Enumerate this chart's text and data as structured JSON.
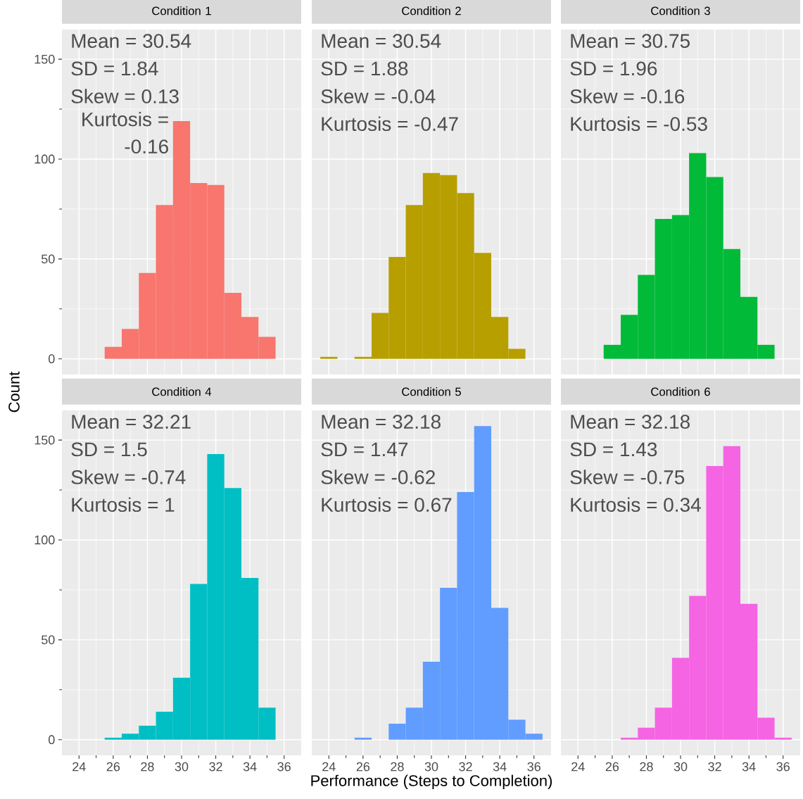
{
  "chart_data": [
    {
      "type": "histogram",
      "title": "Condition 1",
      "color": "#F8766D",
      "bins": [
        23.5,
        24.5,
        25.5,
        26.5,
        27.5,
        28.5,
        29.5,
        30.5,
        31.5,
        32.5,
        33.5,
        34.5,
        35.5,
        36.5
      ],
      "values": [
        0,
        0,
        6,
        15,
        43,
        77,
        119,
        88,
        87,
        33,
        21,
        11,
        0
      ],
      "xlim": [
        23,
        37
      ],
      "ylim": [
        -7.85,
        164.85
      ],
      "xticks": [
        24,
        26,
        28,
        30,
        32,
        34,
        36
      ],
      "yticks": [
        0,
        50,
        100,
        150
      ],
      "grid": true,
      "tick_labels": "y",
      "annotations": [
        "Mean = 30.54",
        "SD = 1.84",
        "Skew = 0.13",
        "Kurtosis = -0.16"
      ]
    },
    {
      "type": "histogram",
      "title": "Condition 2",
      "color": "#B79F00",
      "bins": [
        23.5,
        24.5,
        25.5,
        26.5,
        27.5,
        28.5,
        29.5,
        30.5,
        31.5,
        32.5,
        33.5,
        34.5,
        35.5,
        36.5
      ],
      "values": [
        1,
        0,
        1,
        23,
        51,
        77,
        93,
        92,
        83,
        53,
        21,
        5,
        0
      ],
      "xlim": [
        23,
        37
      ],
      "ylim": [
        -7.85,
        164.85
      ],
      "xticks": [
        24,
        26,
        28,
        30,
        32,
        34,
        36
      ],
      "yticks": [
        0,
        50,
        100,
        150
      ],
      "grid": true,
      "tick_labels": false,
      "annotations": [
        "Mean = 30.54",
        "SD = 1.88",
        "Skew = -0.04",
        "Kurtosis = -0.47"
      ]
    },
    {
      "type": "histogram",
      "title": "Condition 3",
      "color": "#00BA38",
      "bins": [
        23.5,
        24.5,
        25.5,
        26.5,
        27.5,
        28.5,
        29.5,
        30.5,
        31.5,
        32.5,
        33.5,
        34.5,
        35.5,
        36.5
      ],
      "values": [
        0,
        0,
        7,
        22,
        42,
        70,
        72,
        103,
        91,
        55,
        31,
        7,
        0
      ],
      "xlim": [
        23,
        37
      ],
      "ylim": [
        -7.85,
        164.85
      ],
      "xticks": [
        24,
        26,
        28,
        30,
        32,
        34,
        36
      ],
      "yticks": [
        0,
        50,
        100,
        150
      ],
      "grid": true,
      "tick_labels": false,
      "annotations": [
        "Mean = 30.75",
        "SD = 1.96",
        "Skew = -0.16",
        "Kurtosis = -0.53"
      ]
    },
    {
      "type": "histogram",
      "title": "Condition 4",
      "color": "#00BFC4",
      "ylabel": "Count",
      "bins": [
        23.5,
        24.5,
        25.5,
        26.5,
        27.5,
        28.5,
        29.5,
        30.5,
        31.5,
        32.5,
        33.5,
        34.5,
        35.5,
        36.5
      ],
      "values": [
        0,
        0,
        1,
        3,
        7,
        14,
        31,
        78,
        143,
        126,
        81,
        16,
        0
      ],
      "xlim": [
        23,
        37
      ],
      "ylim": [
        -7.85,
        164.85
      ],
      "xticks": [
        24,
        26,
        28,
        30,
        32,
        34,
        36
      ],
      "yticks": [
        0,
        50,
        100,
        150
      ],
      "grid": true,
      "annotations": [
        "Mean = 32.21",
        "SD = 1.5",
        "Skew = -0.74",
        "Kurtosis = 1"
      ]
    },
    {
      "type": "histogram",
      "title": "Condition 5",
      "color": "#619CFF",
      "xlabel": "Performance (Steps to Completion)",
      "bins": [
        23.5,
        24.5,
        25.5,
        26.5,
        27.5,
        28.5,
        29.5,
        30.5,
        31.5,
        32.5,
        33.5,
        34.5,
        35.5,
        36.5
      ],
      "values": [
        0,
        0,
        1,
        0,
        8,
        16,
        39,
        76,
        124,
        157,
        66,
        10,
        3
      ],
      "xlim": [
        23,
        37
      ],
      "ylim": [
        -7.85,
        164.85
      ],
      "xticks": [
        24,
        26,
        28,
        30,
        32,
        34,
        36
      ],
      "yticks": [
        0,
        50,
        100,
        150
      ],
      "grid": true,
      "tick_labels": "x",
      "annotations": [
        "Mean = 32.18",
        "SD = 1.47",
        "Skew = -0.62",
        "Kurtosis = 0.67"
      ]
    },
    {
      "type": "histogram",
      "title": "Condition 6",
      "color": "#F564E3",
      "bins": [
        23.5,
        24.5,
        25.5,
        26.5,
        27.5,
        28.5,
        29.5,
        30.5,
        31.5,
        32.5,
        33.5,
        34.5,
        35.5,
        36.5
      ],
      "values": [
        0,
        0,
        0,
        1,
        6,
        16,
        41,
        72,
        137,
        147,
        68,
        11,
        1
      ],
      "xlim": [
        23,
        37
      ],
      "ylim": [
        -7.85,
        164.85
      ],
      "xticks": [
        24,
        26,
        28,
        30,
        32,
        34,
        36
      ],
      "yticks": [
        0,
        50,
        100,
        150
      ],
      "grid": true,
      "tick_labels": "x",
      "annotations": [
        "Mean = 32.18",
        "SD = 1.43",
        "Skew = -0.75",
        "Kurtosis = 0.34"
      ]
    }
  ]
}
